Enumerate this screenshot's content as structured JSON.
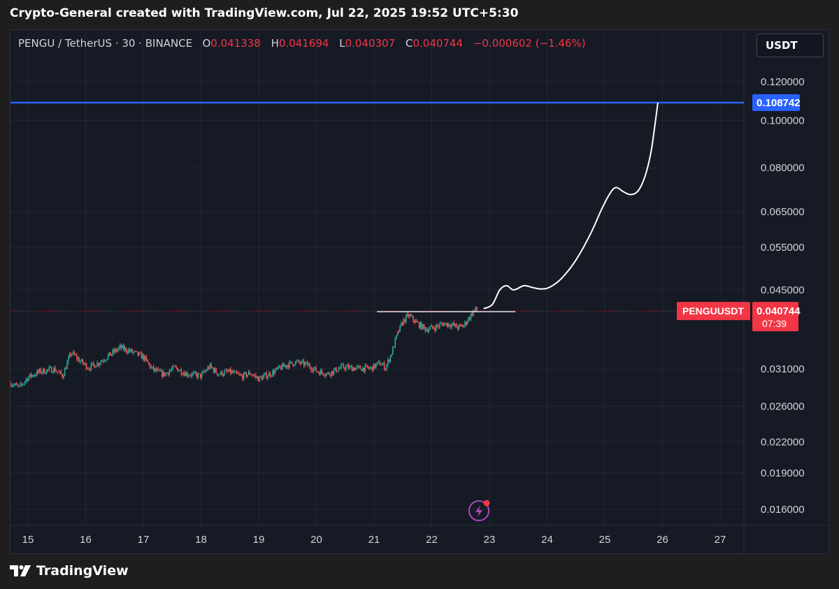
{
  "caption": "Crypto-General created with TradingView.com, Jul 22, 2025 19:52 UTC+5:30",
  "legend": {
    "symbol": "PENGU / TetherUS · 30 · BINANCE",
    "open_key": "O",
    "open": "0.041338",
    "high_key": "H",
    "high": "0.041694",
    "low_key": "L",
    "low": "0.040307",
    "close_key": "C",
    "close": "0.040744",
    "change": "−0.000602 (−1.46%)"
  },
  "currency_button": "USDT",
  "footer": {
    "brand": "TradingView"
  },
  "colors": {
    "background": "#161a25",
    "up": "#26a69a",
    "down": "#ef5350",
    "target_line": "#2962ff",
    "last_price": "#f23645",
    "projection": "#ffffff"
  },
  "icons": {
    "alert": "lightning-alert-icon",
    "logo": "tradingview-logo-icon"
  },
  "chart_data": {
    "type": "candlestick",
    "scale": "log",
    "y_ticks": [
      "0.120000",
      "0.100000",
      "0.080000",
      "0.065000",
      "0.055000",
      "0.045000",
      "0.031000",
      "0.026000",
      "0.022000",
      "0.019000",
      "0.016000"
    ],
    "x_ticks": [
      "15",
      "16",
      "17",
      "18",
      "19",
      "20",
      "21",
      "22",
      "23",
      "24",
      "25",
      "26",
      "27"
    ],
    "grid": true,
    "price_path": [
      [
        14.7,
        0.029
      ],
      [
        14.85,
        0.0284
      ],
      [
        15.0,
        0.0298
      ],
      [
        15.2,
        0.0306
      ],
      [
        15.45,
        0.031
      ],
      [
        15.6,
        0.03
      ],
      [
        15.75,
        0.0335
      ],
      [
        15.9,
        0.0322
      ],
      [
        16.05,
        0.0312
      ],
      [
        16.2,
        0.0318
      ],
      [
        16.4,
        0.033
      ],
      [
        16.6,
        0.0343
      ],
      [
        16.8,
        0.0336
      ],
      [
        17.0,
        0.0328
      ],
      [
        17.15,
        0.031
      ],
      [
        17.35,
        0.0302
      ],
      [
        17.55,
        0.0312
      ],
      [
        17.75,
        0.0303
      ],
      [
        18.0,
        0.03
      ],
      [
        18.15,
        0.0314
      ],
      [
        18.3,
        0.0303
      ],
      [
        18.5,
        0.0306
      ],
      [
        18.7,
        0.0299
      ],
      [
        18.85,
        0.0304
      ],
      [
        19.0,
        0.0296
      ],
      [
        19.2,
        0.0303
      ],
      [
        19.45,
        0.0315
      ],
      [
        19.65,
        0.032
      ],
      [
        19.85,
        0.0316
      ],
      [
        20.0,
        0.0307
      ],
      [
        20.2,
        0.0303
      ],
      [
        20.45,
        0.0313
      ],
      [
        20.7,
        0.0311
      ],
      [
        20.95,
        0.0311
      ],
      [
        21.1,
        0.0319
      ],
      [
        21.2,
        0.0312
      ],
      [
        21.3,
        0.0333
      ],
      [
        21.4,
        0.0364
      ],
      [
        21.5,
        0.0388
      ],
      [
        21.6,
        0.0399
      ],
      [
        21.75,
        0.0384
      ],
      [
        21.9,
        0.0374
      ],
      [
        22.05,
        0.0377
      ],
      [
        22.2,
        0.0384
      ],
      [
        22.35,
        0.0382
      ],
      [
        22.45,
        0.0377
      ],
      [
        22.55,
        0.038
      ],
      [
        22.65,
        0.0395
      ],
      [
        22.75,
        0.0411
      ],
      [
        22.8,
        0.0407
      ]
    ],
    "target_price": 0.108742,
    "target_label": "0.108742",
    "resistance_level": 0.0406,
    "last_price_label": {
      "symbol": "PENGUUSDT",
      "price": "0.040744",
      "countdown": "07:39"
    },
    "projection": [
      [
        22.9,
        0.0412
      ],
      [
        23.05,
        0.042
      ],
      [
        23.18,
        0.045
      ],
      [
        23.3,
        0.0459
      ],
      [
        23.42,
        0.045
      ],
      [
        23.6,
        0.0459
      ],
      [
        23.75,
        0.0455
      ],
      [
        23.9,
        0.0452
      ],
      [
        24.05,
        0.0456
      ],
      [
        24.25,
        0.0475
      ],
      [
        24.5,
        0.0518
      ],
      [
        24.75,
        0.0585
      ],
      [
        24.95,
        0.066
      ],
      [
        25.1,
        0.0712
      ],
      [
        25.2,
        0.0729
      ],
      [
        25.32,
        0.0715
      ],
      [
        25.45,
        0.0705
      ],
      [
        25.58,
        0.0718
      ],
      [
        25.7,
        0.077
      ],
      [
        25.8,
        0.086
      ],
      [
        25.87,
        0.098
      ],
      [
        25.92,
        0.1087
      ]
    ]
  }
}
